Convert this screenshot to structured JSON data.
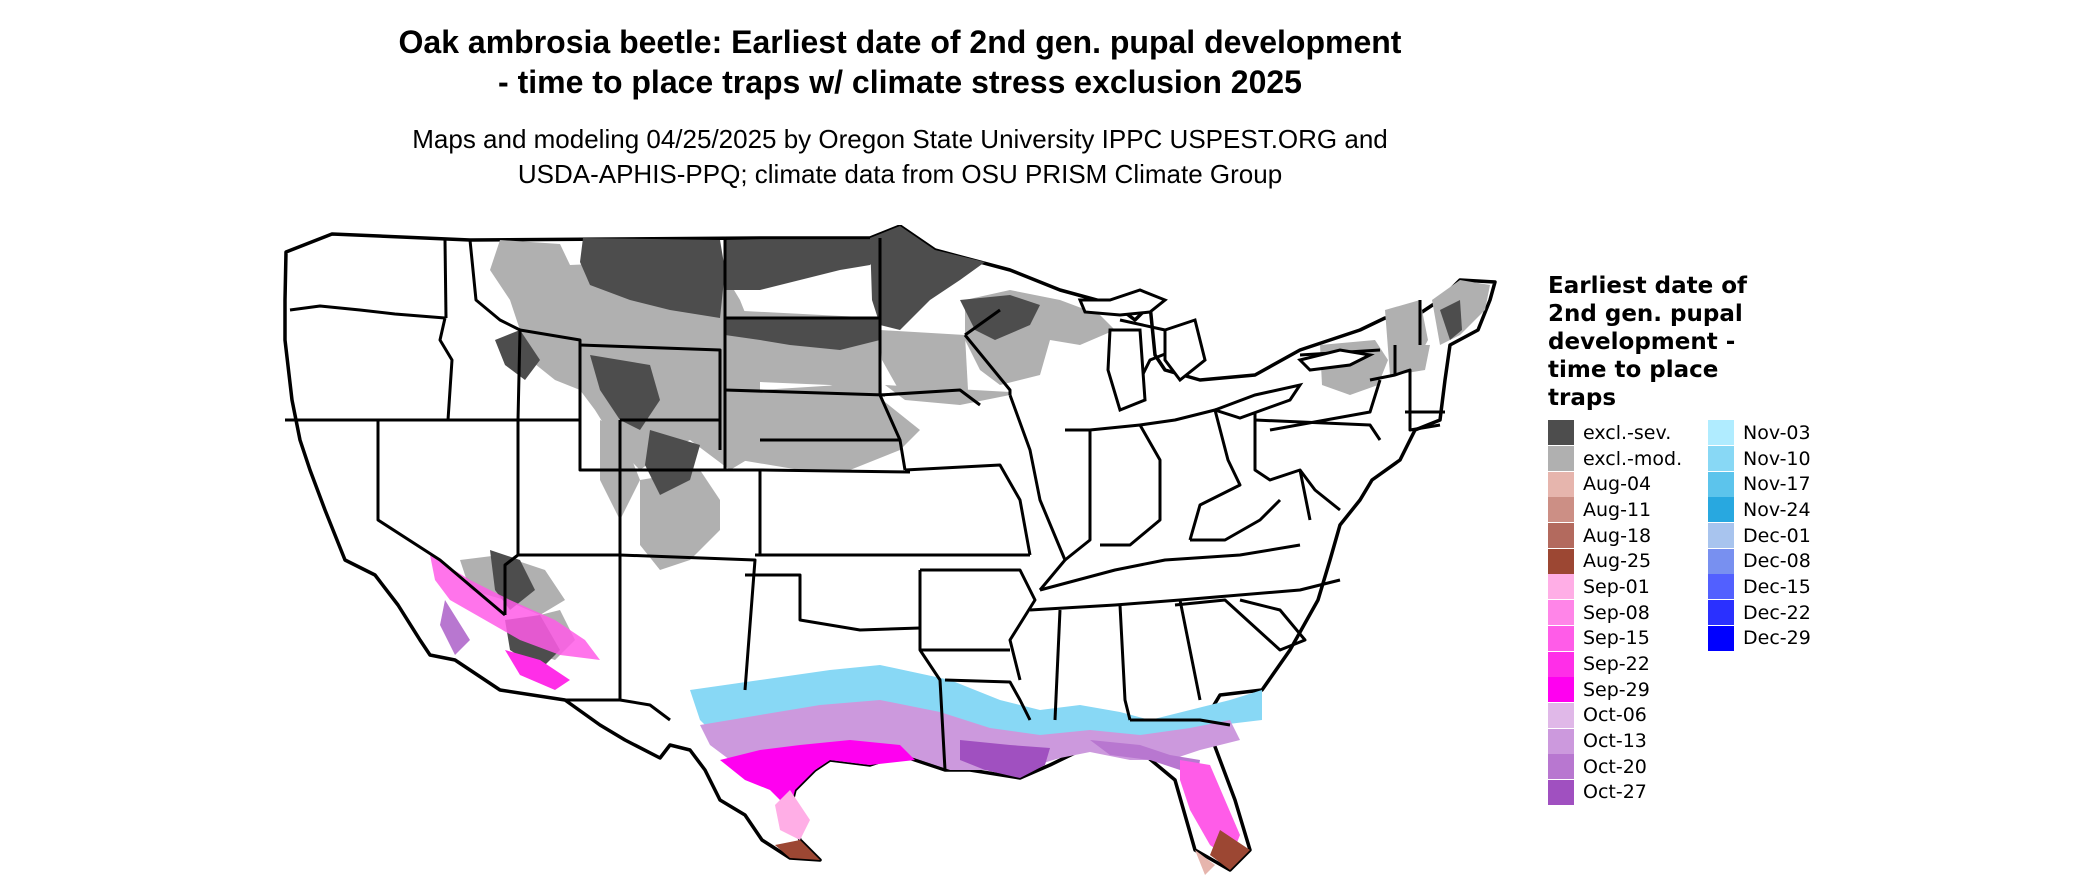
{
  "header": {
    "title_line1": "Oak ambrosia beetle: Earliest date of 2nd gen. pupal development",
    "title_line2": "- time to place traps w/ climate stress exclusion 2025",
    "subtitle_line1": "Maps and modeling 04/25/2025 by Oregon State University IPPC USPEST.ORG and",
    "subtitle_line2": "USDA-APHIS-PPQ; climate data from OSU PRISM Climate Group"
  },
  "legend": {
    "title": "Earliest date of 2nd gen. pupal development - time to place traps",
    "column1": [
      {
        "label": "excl.-sev.",
        "color": "#4d4d4d"
      },
      {
        "label": "excl.-mod.",
        "color": "#b0b0b0"
      },
      {
        "label": "Aug-04",
        "color": "#e6b5ad"
      },
      {
        "label": "Aug-11",
        "color": "#cc8f85"
      },
      {
        "label": "Aug-18",
        "color": "#b36a5e"
      },
      {
        "label": "Aug-25",
        "color": "#9c4733"
      },
      {
        "label": "Sep-01",
        "color": "#ffaee6"
      },
      {
        "label": "Sep-08",
        "color": "#ff85e8"
      },
      {
        "label": "Sep-15",
        "color": "#ff5ce8"
      },
      {
        "label": "Sep-22",
        "color": "#ff2ee8"
      },
      {
        "label": "Sep-29",
        "color": "#ff00f0"
      },
      {
        "label": "Oct-06",
        "color": "#e0b8e8"
      },
      {
        "label": "Oct-13",
        "color": "#cc99dd"
      },
      {
        "label": "Oct-20",
        "color": "#b877d0"
      },
      {
        "label": "Oct-27",
        "color": "#a050c0"
      }
    ],
    "column2": [
      {
        "label": "Nov-03",
        "color": "#b0ecff"
      },
      {
        "label": "Nov-10",
        "color": "#88d8f5"
      },
      {
        "label": "Nov-17",
        "color": "#5cc4ec"
      },
      {
        "label": "Nov-24",
        "color": "#28a8e0"
      },
      {
        "label": "Dec-01",
        "color": "#a8c4ee"
      },
      {
        "label": "Dec-08",
        "color": "#7890f0"
      },
      {
        "label": "Dec-15",
        "color": "#5260ff"
      },
      {
        "label": "Dec-22",
        "color": "#2a30ff"
      },
      {
        "label": "Dec-29",
        "color": "#0000ff"
      }
    ]
  },
  "map_colors": {
    "state_fill": "#ffffff",
    "border": "#000000",
    "severe_exclusion": "#4d4d4d",
    "moderate_exclusion": "#b0b0b0"
  }
}
